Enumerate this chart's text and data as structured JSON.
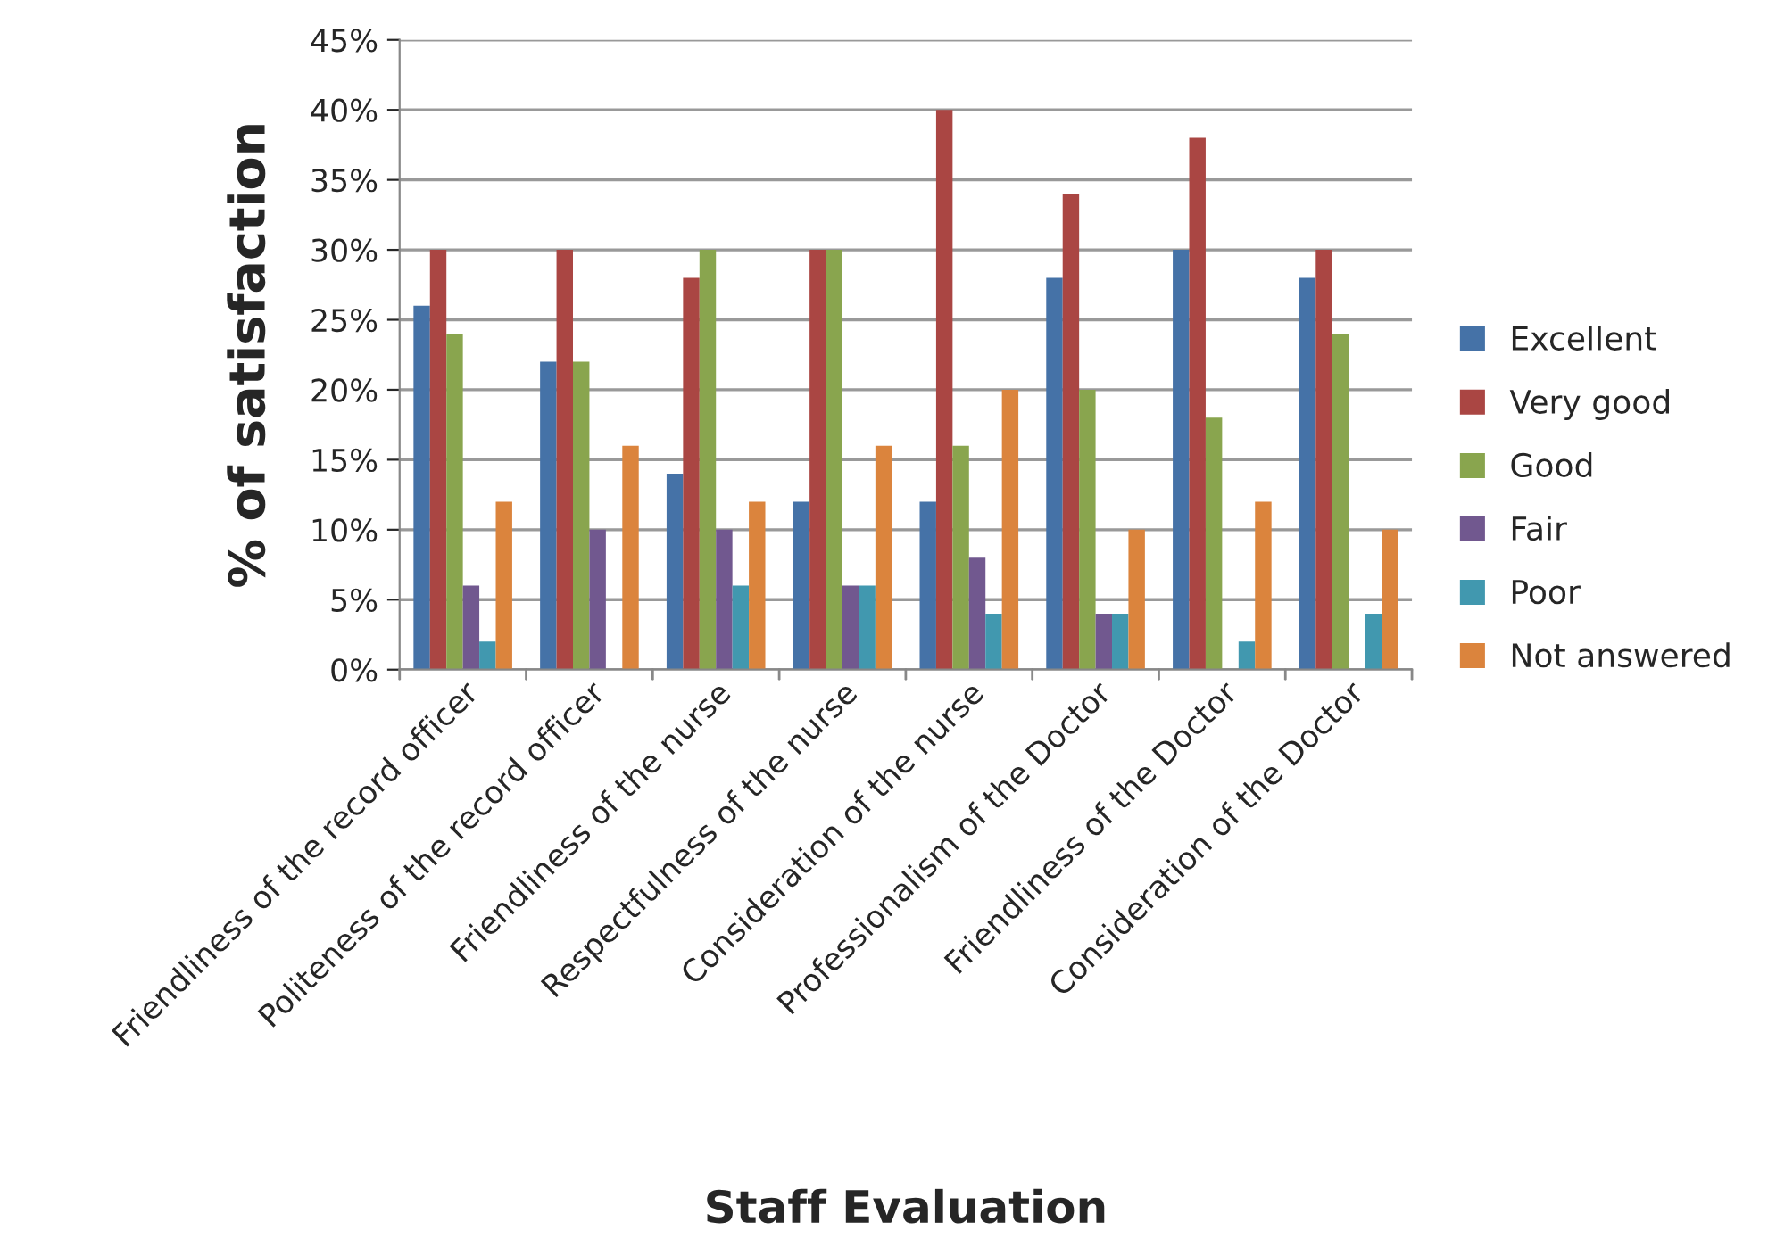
{
  "chart_data": {
    "type": "bar",
    "xlabel": "Staff Evaluation",
    "ylabel": "% of satisfaction",
    "categories": [
      "Friendliness of the record officer",
      "Politeness of the record officer",
      "Friendliness of the nurse",
      "Respectfulness of the nurse",
      "Consideration of the nurse",
      "Professionalism of the Doctor",
      "Friendliness of the Doctor",
      "Consideration of the Doctor"
    ],
    "series": [
      {
        "name": "Excellent",
        "color": "#4572a7",
        "values": [
          26,
          22,
          14,
          12,
          12,
          28,
          30,
          28
        ]
      },
      {
        "name": "Very good",
        "color": "#aa4643",
        "values": [
          30,
          30,
          28,
          30,
          40,
          34,
          38,
          30
        ]
      },
      {
        "name": "Good",
        "color": "#89a54e",
        "values": [
          24,
          22,
          30,
          30,
          16,
          20,
          18,
          24
        ]
      },
      {
        "name": "Fair",
        "color": "#71588f",
        "values": [
          6,
          10,
          10,
          6,
          8,
          4,
          null,
          null
        ]
      },
      {
        "name": "Poor",
        "color": "#4198af",
        "values": [
          2,
          null,
          6,
          6,
          4,
          4,
          2,
          4
        ]
      },
      {
        "name": "Not answered",
        "color": "#db843d",
        "values": [
          12,
          16,
          12,
          16,
          20,
          10,
          12,
          10
        ]
      }
    ],
    "ylim": [
      0,
      45
    ],
    "yticks": [
      {
        "value": 0,
        "label": "0%"
      },
      {
        "value": 5,
        "label": "5%"
      },
      {
        "value": 10,
        "label": "10%"
      },
      {
        "value": 15,
        "label": "15%"
      },
      {
        "value": 20,
        "label": "20%"
      },
      {
        "value": 25,
        "label": "25%"
      },
      {
        "value": 30,
        "label": "30%"
      },
      {
        "value": 35,
        "label": "35%"
      },
      {
        "value": 40,
        "label": "40%"
      },
      {
        "value": 45,
        "label": "45%"
      }
    ],
    "grid": "y",
    "legend": "right"
  }
}
